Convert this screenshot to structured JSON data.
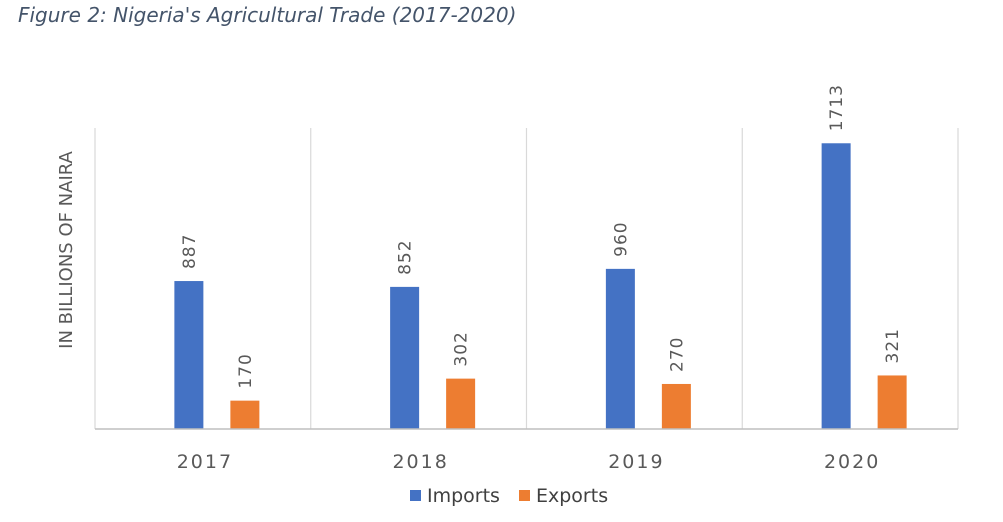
{
  "title": "Figure 2: Nigeria's Agricultural Trade (2017-2020)",
  "chart_data": {
    "type": "bar",
    "title": "Figure 2: Nigeria's Agricultural Trade (2017-2020)",
    "xlabel": "",
    "ylabel": "IN BILLIONS OF NAIRA",
    "categories": [
      "2017",
      "2018",
      "2019",
      "2020"
    ],
    "series": [
      {
        "name": "Imports",
        "color": "#4472C4",
        "values": [
          887,
          852,
          960,
          1713
        ]
      },
      {
        "name": "Exports",
        "color": "#ED7D31",
        "values": [
          170,
          302,
          270,
          321
        ]
      }
    ],
    "ylim": [
      0,
      1800
    ],
    "grid": "vertical category separators",
    "legend": "bottom-center",
    "data_labels": "rotated above bars"
  }
}
